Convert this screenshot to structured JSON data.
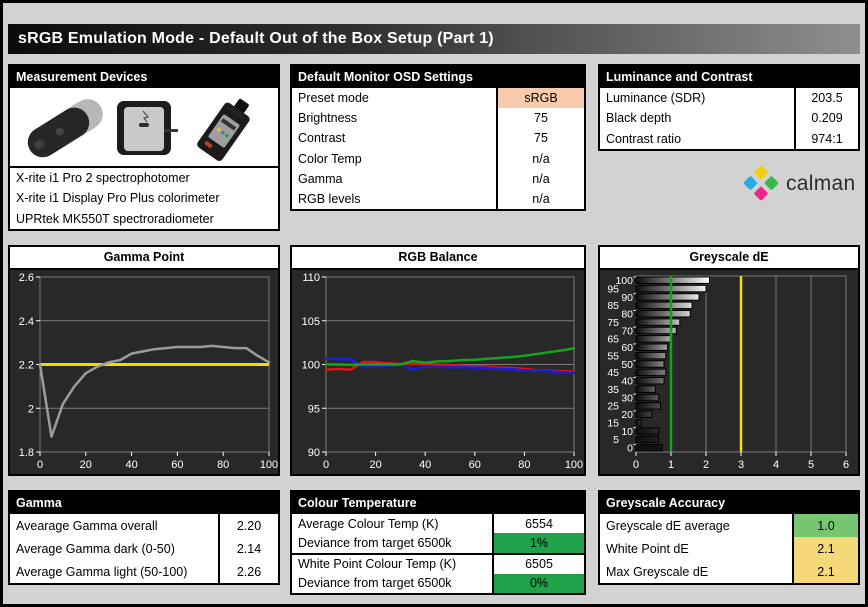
{
  "title": "sRGB Emulation Mode - Default Out of the Box Setup (Part 1)",
  "logo": {
    "text": "calman",
    "diamond_colors": {
      "top": "#F3CE0F",
      "left": "#29ABE2",
      "right": "#3AB54A",
      "bottom": "#EC268F"
    }
  },
  "panels": {
    "devices": {
      "header": "Measurement Devices",
      "items": [
        "X-rite i1 Pro 2 spectrophotomer",
        "X-rite i1 Display Pro Plus colorimeter",
        "UPRtek MK550T spectroradiometer"
      ]
    },
    "osd": {
      "header": "Default Monitor OSD Settings",
      "rows": [
        {
          "label": "Preset mode",
          "value": "sRGB",
          "bg": "#F8CBAD"
        },
        {
          "label": "Brightness",
          "value": "75"
        },
        {
          "label": "Contrast",
          "value": "75"
        },
        {
          "label": "Color Temp",
          "value": "n/a"
        },
        {
          "label": "Gamma",
          "value": "n/a"
        },
        {
          "label": "RGB levels",
          "value": "n/a"
        }
      ]
    },
    "luminance": {
      "header": "Luminance and Contrast",
      "rows": [
        {
          "label": "Luminance (SDR)",
          "value": "203.5"
        },
        {
          "label": "Black depth",
          "value": "0.209"
        },
        {
          "label": "Contrast ratio",
          "value": "974:1"
        }
      ]
    },
    "gamma_summary": {
      "header": "Gamma",
      "rows": [
        {
          "label": "Avearage Gamma overall",
          "value": "2.20"
        },
        {
          "label": "Average Gamma dark (0-50)",
          "value": "2.14"
        },
        {
          "label": "Average Gamma light (50-100)",
          "value": "2.26"
        }
      ]
    },
    "colour_temp": {
      "header": "Colour Temperature",
      "rows": [
        {
          "label": "Average Colour Temp (K)",
          "value": "6554"
        },
        {
          "label": "Deviance from target 6500k",
          "value": "1%",
          "bg": "#1FA24A"
        },
        {
          "label": "White Point Colour Temp (K)",
          "value": "6505"
        },
        {
          "label": "Deviance from target 6500k",
          "value": "0%",
          "bg": "#1FA24A"
        }
      ]
    },
    "greyscale_accuracy": {
      "header": "Greyscale Accuracy",
      "rows": [
        {
          "label": "Greyscale dE average",
          "value": "1.0",
          "bg": "#77C571"
        },
        {
          "label": "White Point dE",
          "value": "2.1",
          "bg": "#F5D878"
        },
        {
          "label": "Max Greyscale dE",
          "value": "2.1",
          "bg": "#F5D878"
        }
      ]
    }
  },
  "chart_data": [
    {
      "type": "line",
      "title": "Gamma Point",
      "x": [
        0,
        5,
        10,
        15,
        20,
        25,
        30,
        35,
        40,
        45,
        50,
        55,
        60,
        65,
        70,
        75,
        80,
        85,
        90,
        95,
        100
      ],
      "series": [
        {
          "name": "Measured Gamma",
          "color": "#9c9c9c",
          "values": [
            2.2,
            1.87,
            2.02,
            2.1,
            2.16,
            2.19,
            2.21,
            2.22,
            2.25,
            2.26,
            2.27,
            2.275,
            2.28,
            2.28,
            2.28,
            2.285,
            2.28,
            2.275,
            2.275,
            2.24,
            2.21
          ]
        }
      ],
      "target_line": {
        "y": 2.2,
        "color": "#f0e000"
      },
      "xlim": [
        0,
        100
      ],
      "ylim": [
        1.8,
        2.6
      ],
      "xticks": [
        0,
        20,
        40,
        60,
        80,
        100
      ],
      "yticks": [
        1.8,
        2,
        2.2,
        2.4,
        2.6
      ],
      "plot_bg": "#282828",
      "grid": "#7a7a7a"
    },
    {
      "type": "line",
      "title": "RGB Balance",
      "x": [
        0,
        5,
        10,
        15,
        20,
        25,
        30,
        35,
        40,
        45,
        50,
        55,
        60,
        65,
        70,
        75,
        80,
        85,
        90,
        95,
        100
      ],
      "series": [
        {
          "name": "Red",
          "color": "#e11515",
          "values": [
            99.4,
            99.5,
            99.4,
            100.3,
            100.25,
            100.15,
            100.05,
            100.1,
            100.05,
            100.0,
            99.95,
            99.85,
            99.8,
            99.75,
            99.65,
            99.6,
            99.5,
            99.35,
            99.3,
            99.25,
            99.2
          ]
        },
        {
          "name": "Blue",
          "color": "#1c1cdf",
          "values": [
            100.7,
            100.6,
            100.6,
            99.7,
            99.8,
            99.85,
            100.0,
            99.4,
            99.8,
            99.75,
            99.7,
            99.7,
            99.65,
            99.6,
            99.5,
            99.45,
            99.35,
            99.3,
            99.25,
            99.1,
            99.05
          ]
        },
        {
          "name": "Green",
          "color": "#14a41e",
          "values": [
            100.0,
            100.0,
            99.95,
            100.0,
            100.0,
            100.0,
            100.0,
            100.4,
            100.2,
            100.35,
            100.4,
            100.5,
            100.55,
            100.65,
            100.75,
            100.85,
            101.0,
            101.2,
            101.4,
            101.6,
            101.85
          ]
        }
      ],
      "xlim": [
        0,
        100
      ],
      "ylim": [
        90,
        110
      ],
      "xticks": [
        0,
        20,
        40,
        60,
        80,
        100
      ],
      "yticks": [
        90,
        95,
        100,
        105,
        110
      ],
      "plot_bg": "#282828",
      "grid": "#7a7a7a"
    },
    {
      "type": "bar-horizontal",
      "title": "Greyscale dE",
      "categories": [
        100,
        95,
        90,
        85,
        80,
        75,
        70,
        65,
        60,
        55,
        50,
        45,
        40,
        35,
        30,
        25,
        20,
        15,
        10,
        5,
        0
      ],
      "values": [
        2.1,
        2.0,
        1.8,
        1.6,
        1.55,
        1.25,
        1.15,
        1.0,
        0.9,
        0.85,
        0.8,
        0.85,
        0.8,
        0.55,
        0.65,
        0.7,
        0.45,
        0.15,
        0.65,
        0.65,
        0.75
      ],
      "xlim": [
        0,
        6
      ],
      "xticks": [
        0,
        1,
        2,
        3,
        4,
        5,
        6
      ],
      "target_lines": [
        {
          "x": 1,
          "color": "#1ca01c"
        },
        {
          "x": 3,
          "color": "#f0e000"
        }
      ],
      "plot_bg": "#282828",
      "grid": "#7a7a7a"
    }
  ]
}
